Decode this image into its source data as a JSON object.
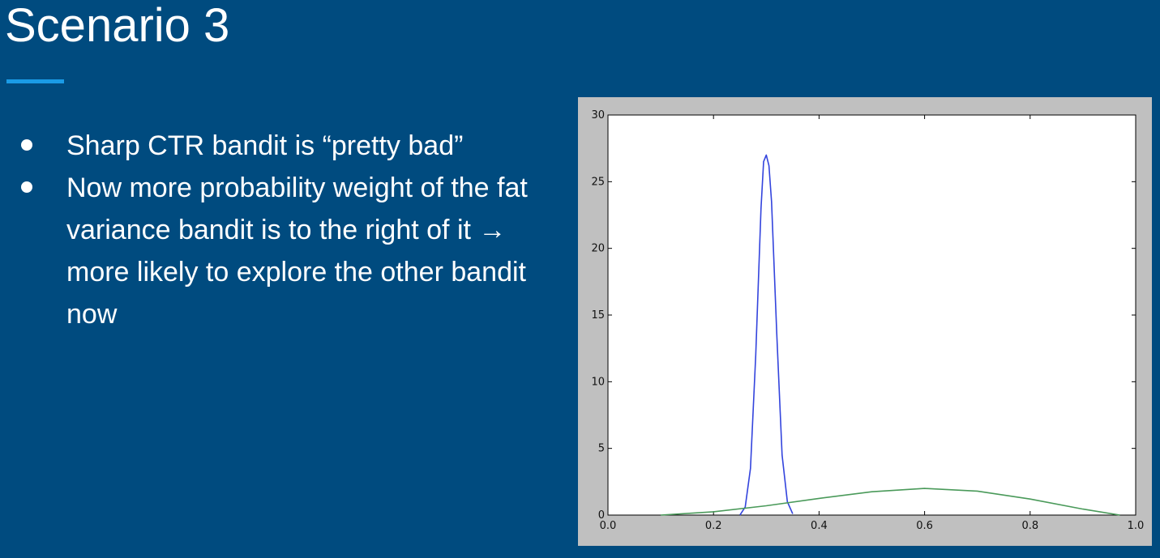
{
  "slide": {
    "title": "Scenario 3",
    "accent_color": "#1a9be6",
    "bullets": [
      "Sharp CTR bandit is “pretty bad”",
      "Now more probability weight of the fat variance bandit is to the right of it → more likely to explore the other bandit now"
    ]
  },
  "chart_data": {
    "type": "line",
    "title": "",
    "xlabel": "",
    "ylabel": "",
    "xlim": [
      0,
      1
    ],
    "ylim": [
      0,
      30
    ],
    "x_ticks": [
      "0.0",
      "0.2",
      "0.4",
      "0.6",
      "0.8",
      "1.0"
    ],
    "y_ticks": [
      "0",
      "5",
      "10",
      "15",
      "20",
      "25",
      "30"
    ],
    "grid": false,
    "legend": "none",
    "series": [
      {
        "color": "#3344dd",
        "x": [
          0.25,
          0.26,
          0.27,
          0.28,
          0.29,
          0.295,
          0.3,
          0.305,
          0.31,
          0.32,
          0.33,
          0.34,
          0.35
        ],
        "y": [
          0.0,
          0.6,
          3.5,
          12.0,
          23.0,
          26.5,
          27.0,
          26.2,
          23.5,
          13.5,
          4.5,
          1.0,
          0.1
        ]
      },
      {
        "color": "#4a9a5a",
        "x": [
          0.1,
          0.2,
          0.3,
          0.4,
          0.5,
          0.6,
          0.7,
          0.8,
          0.9,
          0.97
        ],
        "y": [
          0.0,
          0.25,
          0.7,
          1.25,
          1.75,
          2.0,
          1.8,
          1.2,
          0.45,
          0.0
        ]
      }
    ]
  }
}
